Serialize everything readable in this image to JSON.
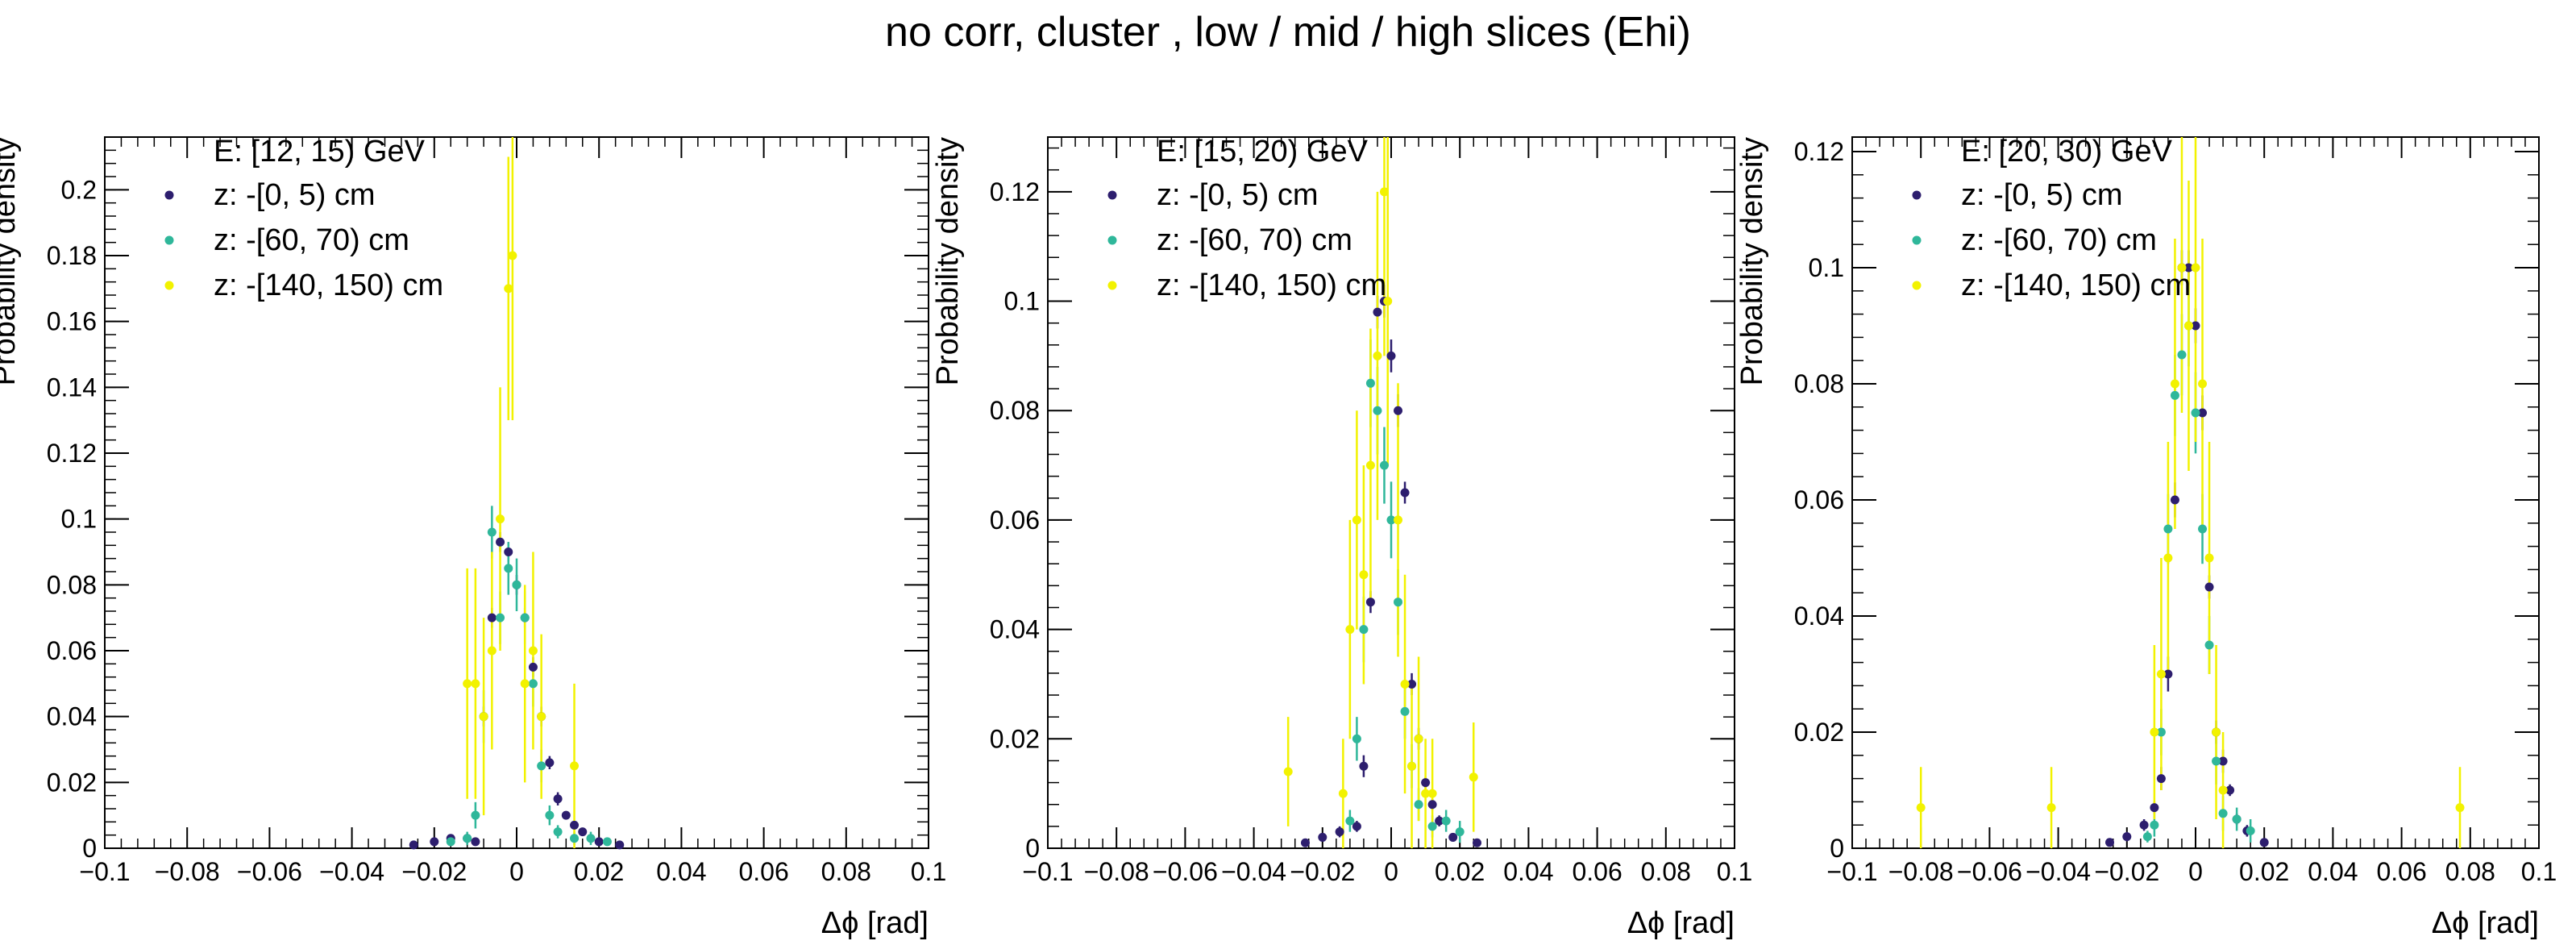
{
  "suptitle": "no corr, cluster  , low / mid / high slices  (Ehi)",
  "colors": {
    "z0": "#2d1e6e",
    "z60": "#2fb79a",
    "z140": "#f2f200",
    "frame": "#000000"
  },
  "chart_data": [
    {
      "type": "scatter",
      "title": "E: [12, 15) GeV",
      "xlabel": "Δϕ  [rad]",
      "ylabel": "Probability density",
      "xlim": [
        -0.1,
        0.1
      ],
      "ylim": [
        0,
        0.216
      ],
      "xticks": [
        "−0.1",
        "−0.08",
        "−0.06",
        "−0.04",
        "−0.02",
        "0",
        "0.02",
        "0.04",
        "0.06",
        "0.08",
        "0.1"
      ],
      "xtick_values": [
        -0.1,
        -0.08,
        -0.06,
        -0.04,
        -0.02,
        0,
        0.02,
        0.04,
        0.06,
        0.08,
        0.1
      ],
      "yticks": [
        "0",
        "0.02",
        "0.04",
        "0.06",
        "0.08",
        "0.1",
        "0.12",
        "0.14",
        "0.16",
        "0.18",
        "0.2"
      ],
      "ytick_values": [
        0,
        0.02,
        0.04,
        0.06,
        0.08,
        0.1,
        0.12,
        0.14,
        0.16,
        0.18,
        0.2
      ],
      "legend_position": "top-left",
      "series": [
        {
          "name": "z: -[0, 5) cm",
          "color": "#2d1e6e",
          "x": [
            -0.025,
            -0.02,
            -0.016,
            -0.012,
            -0.01,
            -0.008,
            -0.006,
            -0.004,
            -0.002,
            0,
            0.002,
            0.004,
            0.006,
            0.008,
            0.01,
            0.012,
            0.014,
            0.016,
            0.02,
            0.025
          ],
          "y": [
            0.001,
            0.002,
            0.003,
            0.003,
            0.002,
            0.04,
            0.07,
            0.093,
            0.09,
            0.08,
            0.07,
            0.055,
            0.04,
            0.026,
            0.015,
            0.01,
            0.007,
            0.005,
            0.002,
            0.001
          ],
          "err": [
            0.0005,
            0.0008,
            0.001,
            0.001,
            0.001,
            0.003,
            0.003,
            0.003,
            0.003,
            0.003,
            0.003,
            0.003,
            0.003,
            0.002,
            0.002,
            0.001,
            0.001,
            0.001,
            0.0008,
            0.0005
          ]
        },
        {
          "name": "z: -[60, 70) cm",
          "color": "#2fb79a",
          "x": [
            -0.016,
            -0.012,
            -0.01,
            -0.008,
            -0.006,
            -0.004,
            -0.002,
            0,
            0.002,
            0.004,
            0.006,
            0.008,
            0.01,
            0.014,
            0.018,
            0.022
          ],
          "y": [
            0.002,
            0.003,
            0.01,
            0.04,
            0.096,
            0.07,
            0.085,
            0.08,
            0.07,
            0.05,
            0.025,
            0.01,
            0.005,
            0.003,
            0.003,
            0.002
          ],
          "err": [
            0.001,
            0.002,
            0.004,
            0.008,
            0.008,
            0.008,
            0.008,
            0.008,
            0.008,
            0.007,
            0.005,
            0.003,
            0.002,
            0.002,
            0.002,
            0.001
          ]
        },
        {
          "name": "z: -[140, 150) cm",
          "color": "#f2f200",
          "x": [
            -0.012,
            -0.01,
            -0.008,
            -0.006,
            -0.004,
            -0.002,
            -0.001,
            0.002,
            0.004,
            0.006,
            0.014
          ],
          "y": [
            0.05,
            0.05,
            0.04,
            0.06,
            0.1,
            0.17,
            0.18,
            0.05,
            0.06,
            0.04,
            0.025
          ],
          "err": [
            0.035,
            0.035,
            0.03,
            0.03,
            0.04,
            0.04,
            0.05,
            0.03,
            0.03,
            0.025,
            0.025
          ]
        }
      ]
    },
    {
      "type": "scatter",
      "title": "E: [15, 20) GeV",
      "xlabel": "Δϕ  [rad]",
      "ylabel": "Probability density",
      "xlim": [
        -0.1,
        0.1
      ],
      "ylim": [
        0,
        0.13
      ],
      "xticks": [
        "−0.1",
        "−0.08",
        "−0.06",
        "−0.04",
        "−0.02",
        "0",
        "0.02",
        "0.04",
        "0.06",
        "0.08",
        "0.1"
      ],
      "xtick_values": [
        -0.1,
        -0.08,
        -0.06,
        -0.04,
        -0.02,
        0,
        0.02,
        0.04,
        0.06,
        0.08,
        0.1
      ],
      "yticks": [
        "0",
        "0.02",
        "0.04",
        "0.06",
        "0.08",
        "0.1",
        "0.12"
      ],
      "ytick_values": [
        0,
        0.02,
        0.04,
        0.06,
        0.08,
        0.1,
        0.12
      ],
      "legend_position": "top-left",
      "series": [
        {
          "name": "z: -[0, 5) cm",
          "color": "#2d1e6e",
          "x": [
            -0.025,
            -0.02,
            -0.015,
            -0.01,
            -0.008,
            -0.006,
            -0.004,
            -0.002,
            0,
            0.002,
            0.004,
            0.006,
            0.008,
            0.01,
            0.012,
            0.014,
            0.018,
            0.025
          ],
          "y": [
            0.001,
            0.002,
            0.003,
            0.004,
            0.015,
            0.045,
            0.098,
            0.1,
            0.09,
            0.08,
            0.065,
            0.03,
            0.02,
            0.012,
            0.008,
            0.005,
            0.002,
            0.001
          ],
          "err": [
            0.0005,
            0.0008,
            0.001,
            0.001,
            0.002,
            0.002,
            0.003,
            0.003,
            0.003,
            0.003,
            0.002,
            0.002,
            0.002,
            0.001,
            0.001,
            0.001,
            0.0008,
            0.0005
          ]
        },
        {
          "name": "z: -[60, 70) cm",
          "color": "#2fb79a",
          "x": [
            -0.012,
            -0.01,
            -0.008,
            -0.006,
            -0.004,
            -0.002,
            0,
            0.002,
            0.004,
            0.006,
            0.008,
            0.012,
            0.016,
            0.02
          ],
          "y": [
            0.005,
            0.02,
            0.04,
            0.085,
            0.08,
            0.07,
            0.06,
            0.045,
            0.025,
            0.015,
            0.008,
            0.004,
            0.005,
            0.003
          ],
          "err": [
            0.002,
            0.004,
            0.006,
            0.008,
            0.008,
            0.007,
            0.007,
            0.006,
            0.005,
            0.004,
            0.003,
            0.002,
            0.002,
            0.002
          ]
        },
        {
          "name": "z: -[140, 150) cm",
          "color": "#f2f200",
          "x": [
            -0.03,
            -0.014,
            -0.012,
            -0.01,
            -0.008,
            -0.006,
            -0.004,
            -0.002,
            -0.001,
            0.002,
            0.004,
            0.006,
            0.008,
            0.01,
            0.012,
            0.024
          ],
          "y": [
            0.014,
            0.01,
            0.04,
            0.06,
            0.05,
            0.07,
            0.09,
            0.12,
            0.1,
            0.06,
            0.03,
            0.015,
            0.02,
            0.01,
            0.01,
            0.013
          ],
          "err": [
            0.01,
            0.01,
            0.02,
            0.02,
            0.02,
            0.025,
            0.03,
            0.03,
            0.03,
            0.025,
            0.02,
            0.015,
            0.015,
            0.01,
            0.01,
            0.01
          ]
        }
      ]
    },
    {
      "type": "scatter",
      "title": "E: [20, 30) GeV",
      "xlabel": "Δϕ  [rad]",
      "ylabel": "Probability density",
      "xlim": [
        -0.1,
        0.1
      ],
      "ylim": [
        0,
        0.1225
      ],
      "xticks": [
        "−0.1",
        "−0.08",
        "−0.06",
        "−0.04",
        "−0.02",
        "0",
        "0.02",
        "0.04",
        "0.06",
        "0.08",
        "0.1"
      ],
      "xtick_values": [
        -0.1,
        -0.08,
        -0.06,
        -0.04,
        -0.02,
        0,
        0.02,
        0.04,
        0.06,
        0.08,
        0.1
      ],
      "yticks": [
        "0",
        "0.02",
        "0.04",
        "0.06",
        "0.08",
        "0.1",
        "0.12"
      ],
      "ytick_values": [
        0,
        0.02,
        0.04,
        0.06,
        0.08,
        0.1,
        0.12
      ],
      "legend_position": "top-left",
      "series": [
        {
          "name": "z: -[0, 5) cm",
          "color": "#2d1e6e",
          "x": [
            -0.025,
            -0.02,
            -0.015,
            -0.012,
            -0.01,
            -0.008,
            -0.006,
            -0.004,
            -0.002,
            0,
            0.002,
            0.004,
            0.006,
            0.008,
            0.01,
            0.012,
            0.015,
            0.02
          ],
          "y": [
            0.001,
            0.002,
            0.004,
            0.007,
            0.012,
            0.03,
            0.06,
            0.1,
            0.1,
            0.09,
            0.075,
            0.045,
            0.02,
            0.015,
            0.01,
            0.005,
            0.003,
            0.001
          ],
          "err": [
            0.0005,
            0.0008,
            0.001,
            0.001,
            0.002,
            0.003,
            0.003,
            0.003,
            0.003,
            0.003,
            0.003,
            0.002,
            0.002,
            0.002,
            0.001,
            0.001,
            0.001,
            0.0005
          ]
        },
        {
          "name": "z: -[60, 70) cm",
          "color": "#2fb79a",
          "x": [
            -0.014,
            -0.012,
            -0.01,
            -0.008,
            -0.006,
            -0.004,
            -0.002,
            0,
            0.002,
            0.004,
            0.006,
            0.008,
            0.012,
            0.016
          ],
          "y": [
            0.002,
            0.004,
            0.02,
            0.055,
            0.078,
            0.085,
            0.09,
            0.075,
            0.055,
            0.035,
            0.015,
            0.006,
            0.005,
            0.003
          ],
          "err": [
            0.001,
            0.002,
            0.004,
            0.006,
            0.007,
            0.007,
            0.007,
            0.007,
            0.006,
            0.005,
            0.004,
            0.003,
            0.002,
            0.002
          ]
        },
        {
          "name": "z: -[140, 150) cm",
          "color": "#f2f200",
          "x": [
            -0.08,
            -0.042,
            -0.012,
            -0.01,
            -0.008,
            -0.006,
            -0.004,
            -0.002,
            0,
            0.002,
            0.004,
            0.006,
            0.008,
            0.077
          ],
          "y": [
            0.007,
            0.007,
            0.02,
            0.03,
            0.05,
            0.08,
            0.1,
            0.09,
            0.1,
            0.08,
            0.05,
            0.02,
            0.01,
            0.007
          ],
          "err": [
            0.007,
            0.007,
            0.015,
            0.02,
            0.02,
            0.025,
            0.025,
            0.025,
            0.03,
            0.025,
            0.02,
            0.015,
            0.01,
            0.007
          ]
        }
      ]
    }
  ]
}
